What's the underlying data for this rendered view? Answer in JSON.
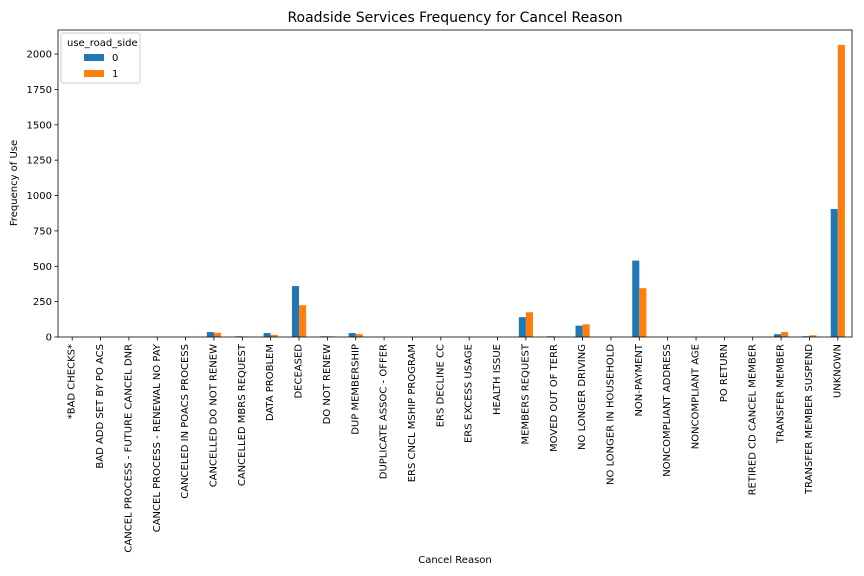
{
  "chart_data": {
    "type": "bar",
    "title": "Roadside Services Frequency for Cancel Reason",
    "xlabel": "Cancel Reason",
    "ylabel": "Frequency of Use",
    "ylim": [
      0,
      2170
    ],
    "yticks": [
      0,
      250,
      500,
      750,
      1000,
      1250,
      1500,
      1750,
      2000
    ],
    "grid": false,
    "legend": {
      "title": "use_road_side",
      "placement": "top-left"
    },
    "categories": [
      "*BAD CHECKS*",
      "BAD ADD SET BY PO ACS",
      "CANCEL PROCESS - FUTURE CANCEL DNR",
      "CANCEL PROCESS - RENEWAL NO PAY",
      "CANCELED IN POACS PROCESS",
      "CANCELLED DO NOT RENEW",
      "CANCELLED MBRS REQUEST",
      "DATA PROBLEM",
      "DECEASED",
      "DO NOT RENEW",
      "DUP MEMBERSHIP",
      "DUPLICATE ASSOC - OFFER",
      "ERS CNCL MSHIP PROGRAM",
      "ERS DECLINE CC",
      "ERS EXCESS USAGE",
      "HEALTH ISSUE",
      "MEMBERS REQUEST",
      "MOVED OUT OF TERR",
      "NO LONGER DRIVING",
      "NO LONGER IN HOUSEHOLD",
      "NON-PAYMENT",
      "NONCOMPLIANT ADDRESS",
      "NONCOMPLIANT AGE",
      "PO RETURN",
      "RETIRED CD CANCEL MEMBER",
      "TRANSFER MEMBER",
      "TRANSFER MEMBER SUSPEND",
      "UNKNOWN"
    ],
    "series": [
      {
        "name": "0",
        "color": "#1f77b4",
        "values": [
          0,
          0,
          0,
          0,
          0,
          35,
          5,
          28,
          360,
          5,
          28,
          0,
          0,
          0,
          0,
          0,
          140,
          5,
          80,
          0,
          540,
          0,
          0,
          0,
          0,
          20,
          5,
          905
        ]
      },
      {
        "name": "1",
        "color": "#ff7f0e",
        "values": [
          0,
          0,
          0,
          0,
          0,
          30,
          3,
          15,
          225,
          5,
          20,
          0,
          0,
          0,
          0,
          0,
          175,
          3,
          90,
          3,
          345,
          0,
          0,
          0,
          0,
          35,
          12,
          2065
        ]
      }
    ]
  }
}
